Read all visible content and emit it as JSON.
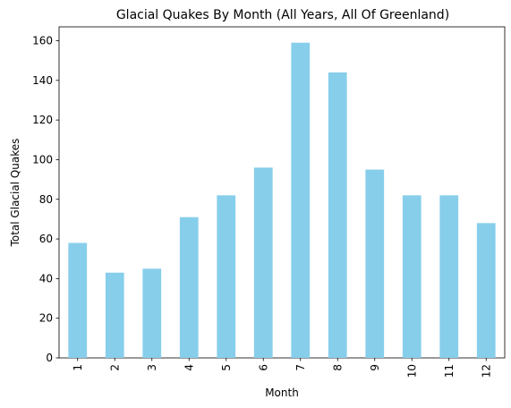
{
  "chart_data": {
    "type": "bar",
    "title": "Glacial Quakes By Month (All Years, All Of Greenland)",
    "xlabel": "Month",
    "ylabel": "Total Glacial Quakes",
    "categories": [
      "1",
      "2",
      "3",
      "4",
      "5",
      "6",
      "7",
      "8",
      "9",
      "10",
      "11",
      "12"
    ],
    "values": [
      58,
      43,
      45,
      71,
      82,
      96,
      159,
      144,
      95,
      82,
      82,
      68
    ],
    "ylim": [
      0,
      167
    ],
    "yticks": [
      0,
      20,
      40,
      60,
      80,
      100,
      120,
      140,
      160
    ],
    "grid": false,
    "legend": "none",
    "bar_color": "#87ceeb",
    "tick_label_rotation": "vertical"
  }
}
